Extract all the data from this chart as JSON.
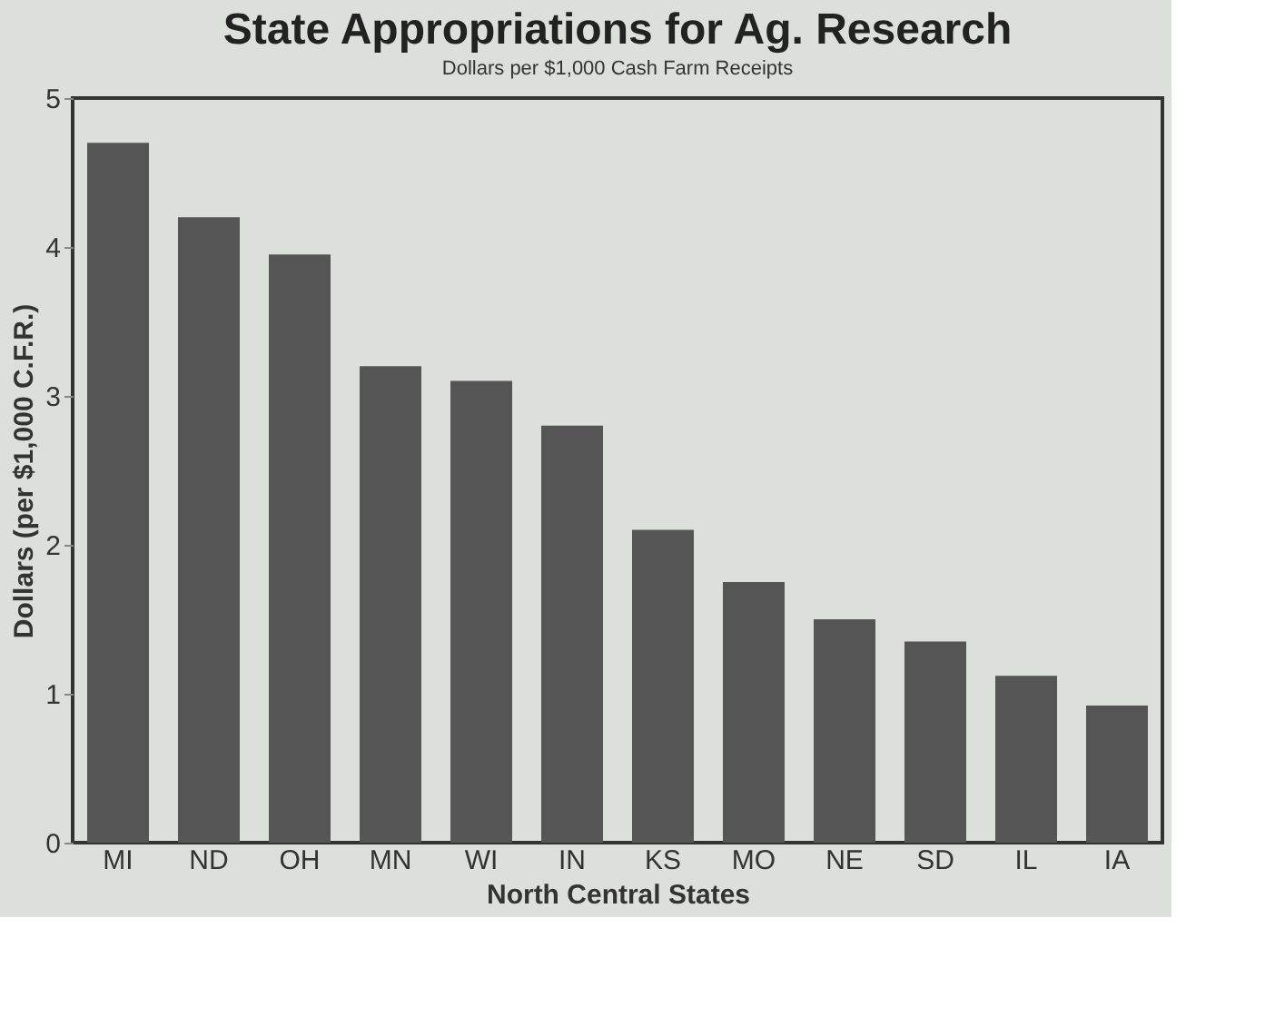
{
  "chart_data": {
    "type": "bar",
    "title": "State Appropriations for Ag. Research",
    "subtitle": "Dollars per $1,000 Cash Farm Receipts",
    "xlabel": "North Central States",
    "ylabel": "Dollars (per $1,000 C.F.R.)",
    "categories": [
      "MI",
      "ND",
      "OH",
      "MN",
      "WI",
      "IN",
      "KS",
      "MO",
      "NE",
      "SD",
      "IL",
      "IA"
    ],
    "values": [
      4.7,
      4.2,
      3.95,
      3.2,
      3.1,
      2.8,
      2.1,
      1.75,
      1.5,
      1.35,
      1.12,
      0.92
    ],
    "color": "#555555",
    "ylim": [
      0,
      5
    ],
    "yticks": [
      0,
      1,
      2,
      3,
      4,
      5
    ],
    "grid": false
  }
}
